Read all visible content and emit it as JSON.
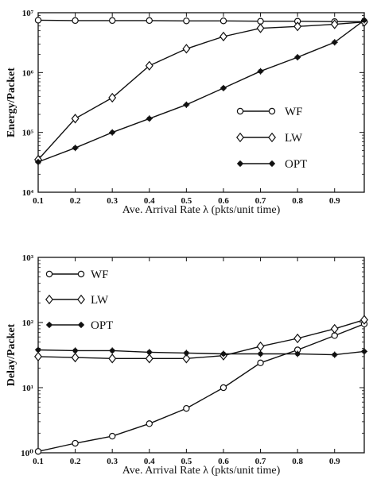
{
  "chart_data": [
    {
      "type": "line",
      "title": "",
      "xlabel": "Ave. Arrival Rate λ (pkts/unit time)",
      "ylabel": "Energy/Packet",
      "yscale": "log",
      "xlim": [
        0.1,
        0.98
      ],
      "ylim": [
        10000,
        10000000
      ],
      "xticks": [
        "0.1",
        "0.2",
        "0.3",
        "0.4",
        "0.5",
        "0.6",
        "0.7",
        "0.8",
        "0.9"
      ],
      "xtick_values": [
        0.1,
        0.2,
        0.3,
        0.4,
        0.5,
        0.6,
        0.7,
        0.8,
        0.9
      ],
      "yticks": [
        "10⁴",
        "10⁵",
        "10⁶",
        "10⁷"
      ],
      "ytick_values": [
        10000,
        100000,
        1000000,
        10000000
      ],
      "legend_position": "lower-right",
      "grid": false,
      "x": [
        0.1,
        0.2,
        0.3,
        0.4,
        0.5,
        0.6,
        0.7,
        0.8,
        0.9,
        0.98
      ],
      "series": [
        {
          "name": "WF",
          "marker": "circle-open",
          "values": [
            7500000,
            7400000,
            7400000,
            7400000,
            7300000,
            7300000,
            7200000,
            7200000,
            7100000,
            7100000
          ]
        },
        {
          "name": "LW",
          "marker": "diamond-open",
          "values": [
            35000,
            170000,
            380000,
            1300000,
            2500000,
            4000000,
            5500000,
            5900000,
            6400000,
            7000000
          ]
        },
        {
          "name": "OPT",
          "marker": "star-filled",
          "values": [
            32000,
            55000,
            100000,
            170000,
            290000,
            550000,
            1050000,
            1800000,
            3200000,
            7500000
          ]
        }
      ]
    },
    {
      "type": "line",
      "title": "",
      "xlabel": "Ave. Arrival Rate λ (pkts/unit time)",
      "ylabel": "Delay/Packet",
      "yscale": "log",
      "xlim": [
        0.1,
        0.98
      ],
      "ylim": [
        1,
        1000
      ],
      "xticks": [
        "0.1",
        "0.2",
        "0.3",
        "0.4",
        "0.5",
        "0.6",
        "0.7",
        "0.8",
        "0.9"
      ],
      "xtick_values": [
        0.1,
        0.2,
        0.3,
        0.4,
        0.5,
        0.6,
        0.7,
        0.8,
        0.9
      ],
      "yticks": [
        "10⁰",
        "10¹",
        "10²",
        "10³"
      ],
      "ytick_values": [
        1,
        10,
        100,
        1000
      ],
      "legend_position": "top-left",
      "grid": false,
      "x": [
        0.1,
        0.2,
        0.3,
        0.4,
        0.5,
        0.6,
        0.7,
        0.8,
        0.9,
        0.98
      ],
      "series": [
        {
          "name": "WF",
          "marker": "circle-open",
          "values": [
            1.05,
            1.4,
            1.8,
            2.8,
            4.8,
            10,
            24,
            38,
            63,
            95
          ]
        },
        {
          "name": "LW",
          "marker": "diamond-open",
          "values": [
            30,
            29,
            28,
            28,
            28,
            31,
            43,
            57,
            80,
            110
          ]
        },
        {
          "name": "OPT",
          "marker": "star-filled",
          "values": [
            38,
            37,
            37,
            35,
            34,
            33,
            33,
            33,
            32,
            36
          ]
        }
      ]
    }
  ]
}
